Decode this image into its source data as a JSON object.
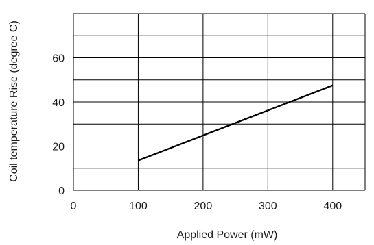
{
  "chart_data": {
    "type": "line",
    "title": "",
    "xlabel": "Applied Power (mW)",
    "ylabel": "Coil temperature Rise (degree C)",
    "xlim": [
      0,
      450
    ],
    "ylim": [
      0,
      80
    ],
    "x_ticks": [
      0,
      100,
      200,
      300,
      400
    ],
    "y_ticks": [
      0,
      20,
      40,
      60
    ],
    "x_grid": [
      0,
      100,
      200,
      300,
      400,
      450
    ],
    "y_grid": [
      0,
      10,
      20,
      30,
      40,
      50,
      60,
      70,
      80
    ],
    "grid": true,
    "series": [
      {
        "name": "",
        "x": [
          100,
          400
        ],
        "y": [
          13.5,
          47.5
        ]
      }
    ]
  }
}
